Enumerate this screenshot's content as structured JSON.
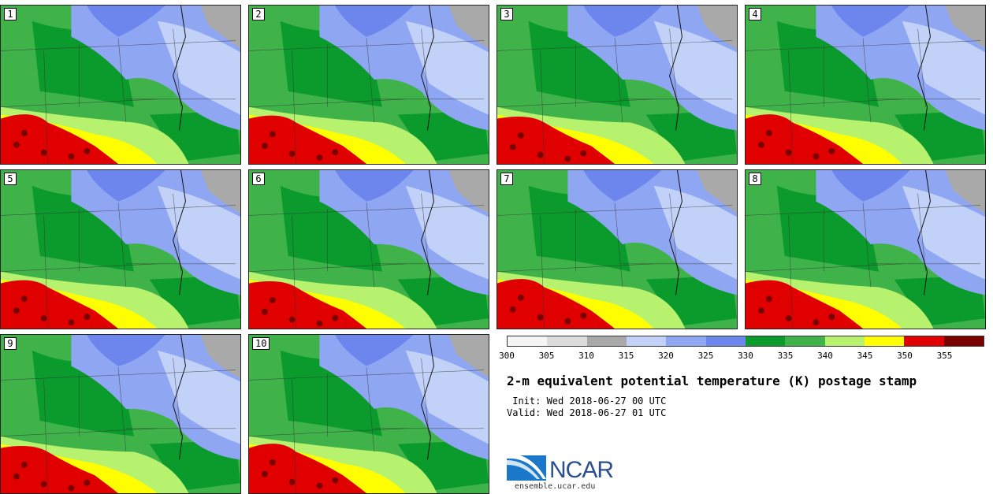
{
  "chart_data": {
    "type": "heatmap",
    "title": "2-m equivalent potential temperature (K) postage stamp",
    "init": " Init: Wed 2018-06-27 00 UTC",
    "valid": "Valid: Wed 2018-06-27 01 UTC",
    "members": [
      "1",
      "2",
      "3",
      "4",
      "5",
      "6",
      "7",
      "8",
      "9",
      "10"
    ],
    "colorbar": {
      "ticks": [
        "300",
        "305",
        "310",
        "315",
        "320",
        "325",
        "330",
        "335",
        "340",
        "345",
        "350",
        "355"
      ],
      "bins": [
        {
          "from": 300,
          "to": 305,
          "color": "#f5f5f5"
        },
        {
          "from": 305,
          "to": 310,
          "color": "#dcdcdc"
        },
        {
          "from": 310,
          "to": 315,
          "color": "#a9a9a9"
        },
        {
          "from": 315,
          "to": 320,
          "color": "#c2d1f7"
        },
        {
          "from": 320,
          "to": 325,
          "color": "#8fa6f3"
        },
        {
          "from": 325,
          "to": 330,
          "color": "#6d86ee"
        },
        {
          "from": 330,
          "to": 335,
          "color": "#0b9a2c"
        },
        {
          "from": 335,
          "to": 340,
          "color": "#3fb34a"
        },
        {
          "from": 340,
          "to": 345,
          "color": "#b7f26f"
        },
        {
          "from": 345,
          "to": 350,
          "color": "#ffff00"
        },
        {
          "from": 350,
          "to": 355,
          "color": "#e00000"
        },
        {
          "from": 355,
          "to": 360,
          "color": "#7a0000"
        }
      ]
    }
  },
  "logo": {
    "name": "NCAR",
    "url": "ensemble.ucar.edu"
  }
}
